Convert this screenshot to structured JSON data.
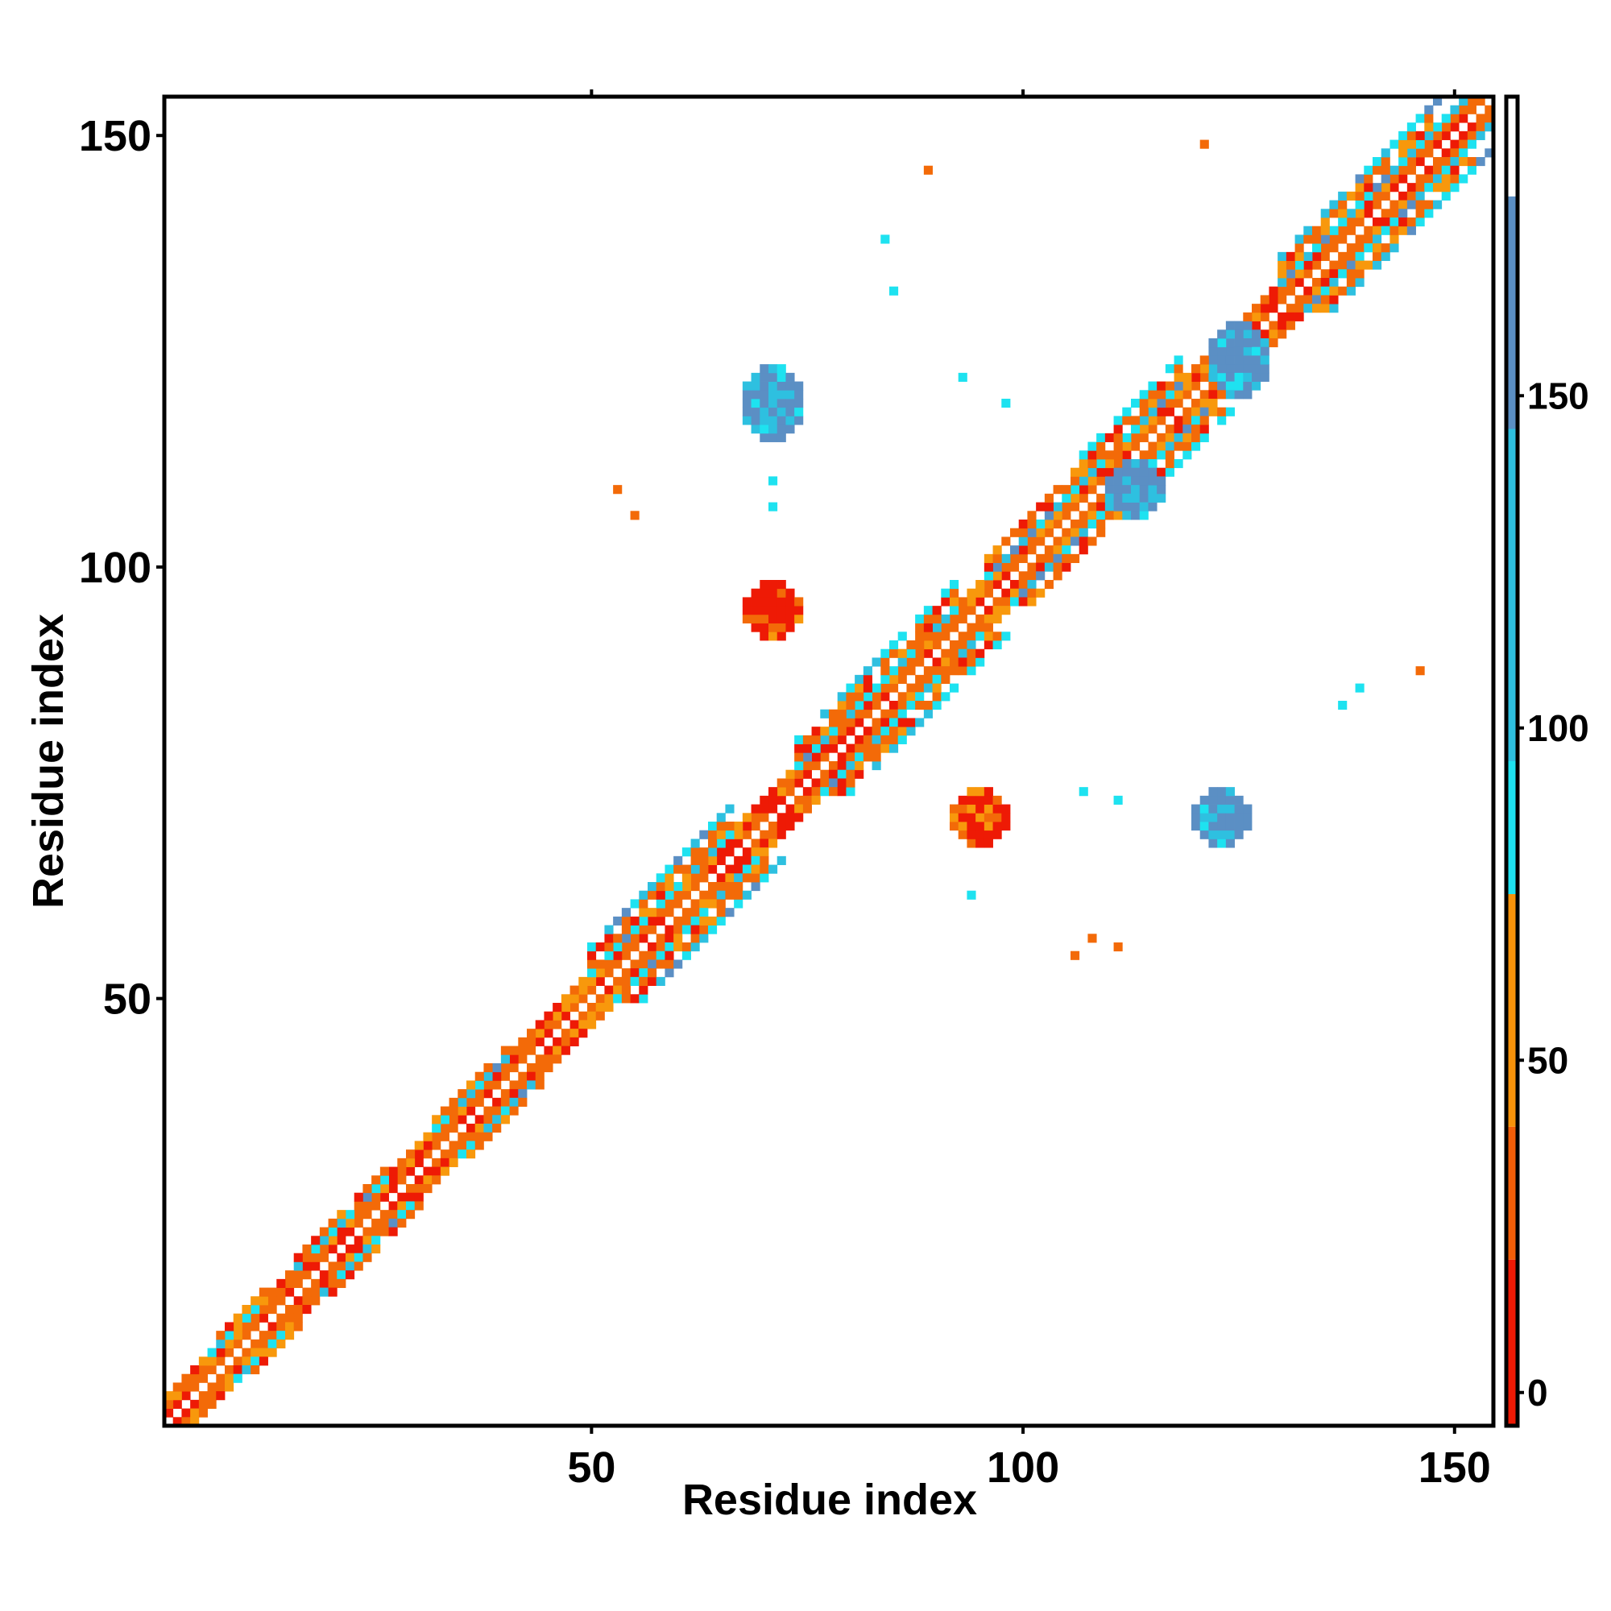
{
  "chart_data": {
    "type": "heatmap",
    "title": "",
    "xlabel": "Residue index",
    "ylabel": "Residue index",
    "xlim": [
      1,
      154
    ],
    "ylim": [
      1,
      154
    ],
    "x_ticks": [
      "50",
      "100",
      "150"
    ],
    "y_ticks": [
      "50",
      "100",
      "150"
    ],
    "colorbar": {
      "range": [
        -5,
        195
      ],
      "ticks": [
        "0",
        "50",
        "100",
        "150"
      ],
      "bands": [
        {
          "from": -5,
          "to": 20,
          "color": "#ee1a05"
        },
        {
          "from": 20,
          "to": 40,
          "color": "#f25e08"
        },
        {
          "from": 40,
          "to": 75,
          "color": "#f6920a"
        },
        {
          "from": 75,
          "to": 95,
          "color": "#1ee2f0"
        },
        {
          "from": 95,
          "to": 145,
          "color": "#2ec0e0"
        },
        {
          "from": 145,
          "to": 180,
          "color": "#5b8fc4"
        },
        {
          "from": 180,
          "to": 195,
          "color": "#ffffff"
        }
      ]
    },
    "palette": {
      "red": "#ee1a05",
      "orange": "#f36a08",
      "amber": "#f8980c",
      "cyan": "#1ee2f0",
      "sky": "#2ec0e0",
      "steel": "#5b8fc4"
    },
    "regions": [
      {
        "kind": "diagonal",
        "from": 2,
        "to": 154,
        "width": 3
      },
      {
        "kind": "helix",
        "from": 6,
        "to": 12,
        "width": 2
      },
      {
        "kind": "helix",
        "from": 16,
        "to": 26,
        "width": 2
      },
      {
        "kind": "helix",
        "from": 32,
        "to": 40,
        "width": 2
      },
      {
        "kind": "helix",
        "from": 50,
        "to": 66,
        "width": 4
      },
      {
        "kind": "helix",
        "from": 74,
        "to": 92,
        "width": 4
      },
      {
        "kind": "helix",
        "from": 96,
        "to": 106,
        "width": 3
      },
      {
        "kind": "helix",
        "from": 107,
        "to": 118,
        "width": 4
      },
      {
        "kind": "helix",
        "from": 130,
        "to": 154,
        "width": 4
      },
      {
        "kind": "blob",
        "x": [
          68,
          74
        ],
        "y": [
          115,
          123
        ],
        "color": "steel"
      },
      {
        "kind": "blob",
        "x": [
          120,
          126
        ],
        "y": [
          68,
          74
        ],
        "color": "steel"
      },
      {
        "kind": "blob",
        "x": [
          68,
          74
        ],
        "y": [
          92,
          98
        ],
        "color": "red"
      },
      {
        "kind": "blob",
        "x": [
          92,
          98
        ],
        "y": [
          68,
          74
        ],
        "color": "red"
      },
      {
        "kind": "blob",
        "x": [
          122,
          128
        ],
        "y": [
          120,
          128
        ],
        "color": "steel"
      },
      {
        "kind": "blob",
        "x": [
          110,
          116
        ],
        "y": [
          106,
          112
        ],
        "color": "steel"
      },
      {
        "kind": "dots",
        "color": "orange",
        "points": [
          [
            121,
            149
          ],
          [
            89,
            146
          ],
          [
            146,
            88
          ],
          [
            55,
            106
          ],
          [
            53,
            109
          ],
          [
            106,
            55
          ],
          [
            108,
            57
          ],
          [
            111,
            56
          ]
        ]
      },
      {
        "kind": "dots",
        "color": "cyan",
        "points": [
          [
            84,
            138
          ],
          [
            85,
            132
          ],
          [
            93,
            122
          ],
          [
            98,
            119
          ],
          [
            71,
            110
          ],
          [
            71,
            107
          ],
          [
            137,
            84
          ],
          [
            139,
            86
          ],
          [
            111,
            73
          ],
          [
            107,
            74
          ],
          [
            94,
            62
          ]
        ]
      }
    ]
  }
}
